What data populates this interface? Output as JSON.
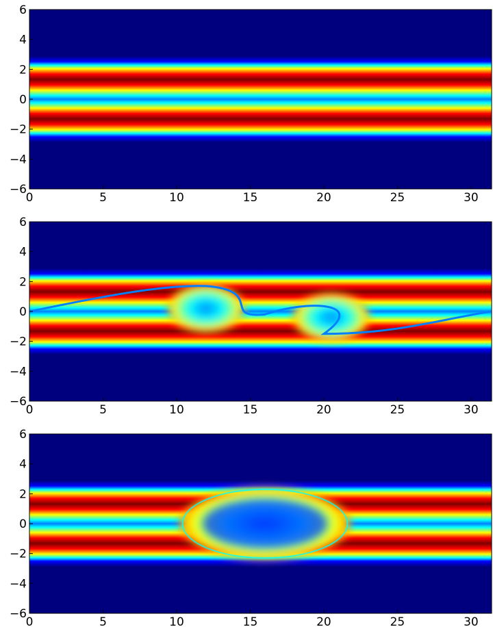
{
  "chart_data": [
    {
      "type": "heatmap",
      "title": "",
      "xlabel": "",
      "ylabel": "",
      "xlim": [
        0,
        31.4
      ],
      "ylim": [
        -6,
        6
      ],
      "xticks": [
        "0",
        "5",
        "10",
        "15",
        "20",
        "25",
        "30"
      ],
      "yticks": [
        "6",
        "4",
        "2",
        "0",
        "−2",
        "−4",
        "−6"
      ],
      "colormap": [
        "#00007f",
        "#0000ff",
        "#0080ff",
        "#00ffff",
        "#80ff80",
        "#ffff00",
        "#ff8000",
        "#ff0000",
        "#7f0000"
      ],
      "state": "initial two-stream bands, uniform in x"
    },
    {
      "type": "heatmap",
      "title": "",
      "xlabel": "",
      "ylabel": "",
      "xlim": [
        0,
        31.4
      ],
      "ylim": [
        -6,
        6
      ],
      "xticks": [
        "0",
        "5",
        "10",
        "15",
        "20",
        "25",
        "30"
      ],
      "yticks": [
        "6",
        "4",
        "2",
        "0",
        "−2",
        "−4",
        "−6"
      ],
      "colormap": [
        "#00007f",
        "#0000ff",
        "#0080ff",
        "#00ffff",
        "#80ff80",
        "#ffff00",
        "#ff8000",
        "#ff0000",
        "#7f0000"
      ],
      "state": "two vortices centered near x=12 and x=20"
    },
    {
      "type": "heatmap",
      "title": "",
      "xlabel": "",
      "ylabel": "",
      "xlim": [
        0,
        31.4
      ],
      "ylim": [
        -6,
        6
      ],
      "xticks": [
        "0",
        "5",
        "10",
        "15",
        "20",
        "25",
        "30"
      ],
      "yticks": [
        "6",
        "4",
        "2",
        "0",
        "−2",
        "−4",
        "−6"
      ],
      "colormap": [
        "#00007f",
        "#0000ff",
        "#0080ff",
        "#00ffff",
        "#80ff80",
        "#ffff00",
        "#ff8000",
        "#ff0000",
        "#7f0000"
      ],
      "state": "single merged vortex centered near x=16"
    }
  ]
}
